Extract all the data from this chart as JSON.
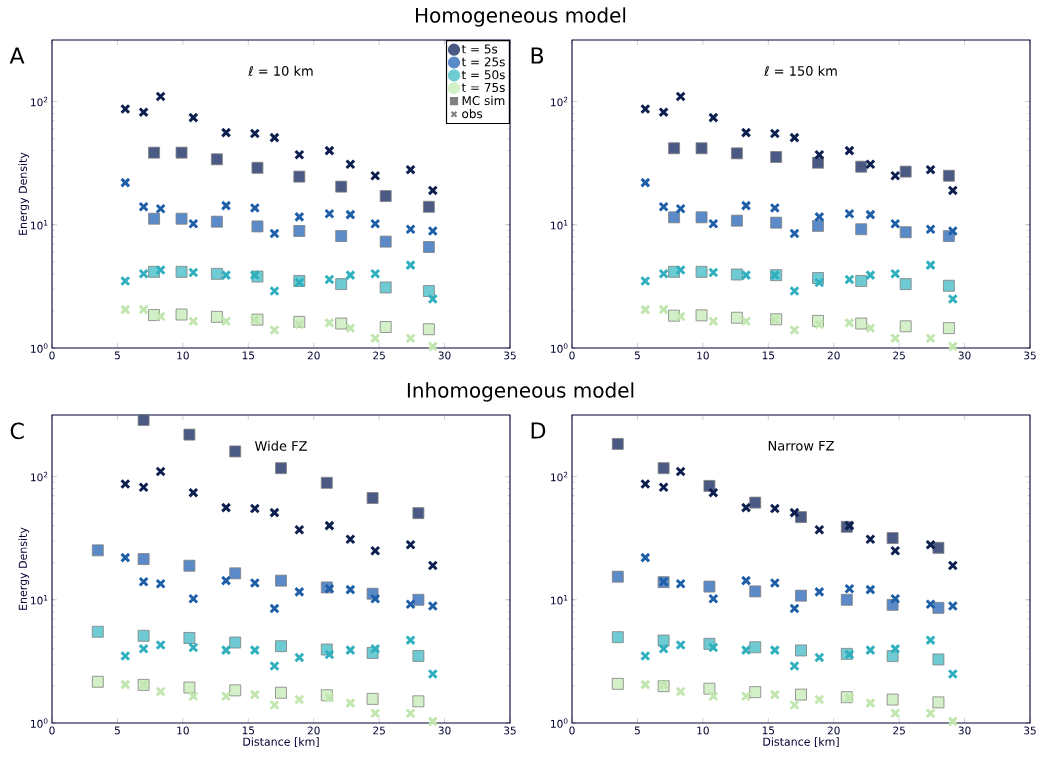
{
  "chart_data": [
    {
      "type": "scatter",
      "title": "Homogeneous model",
      "subtitle": "ℓ = 10 km",
      "annotations": [
        "A",
        "MC sim",
        "obs"
      ],
      "ylabel": "Energy Density",
      "xlim": [
        0,
        35
      ],
      "ylim": [
        1,
        316
      ],
      "xticks": [
        0,
        5,
        10,
        15,
        20,
        25,
        30,
        35
      ],
      "yticks": [
        {
          "value": 1,
          "label": "10$^{0}$"
        },
        {
          "value": 10,
          "label": "10$^{1}$"
        },
        {
          "value": 100,
          "label": "10$^{2}$"
        }
      ],
      "log": "y",
      "legend": "top right",
      "series": [
        {
          "name": "t = 5s",
          "color": "#4a5a85",
          "marker": "square",
          "x": [
            7.8,
            9.9,
            12.6,
            15.7,
            18.9,
            22.1,
            25.5,
            28.8
          ],
          "values": [
            38.5,
            38.5,
            34,
            29,
            24.6,
            20.4,
            17.1,
            14.0
          ]
        },
        {
          "name": "t = 25s",
          "color": "#5b8ac8",
          "marker": "square",
          "x": [
            7.8,
            9.9,
            12.6,
            15.7,
            18.9,
            22.1,
            25.5,
            28.8
          ],
          "values": [
            11.2,
            11.2,
            10.6,
            9.7,
            8.9,
            8.1,
            7.3,
            6.6
          ]
        },
        {
          "name": "t = 50s",
          "color": "#6ecbd3",
          "marker": "square",
          "x": [
            7.8,
            9.9,
            12.6,
            15.7,
            18.9,
            22.1,
            25.5,
            28.8
          ],
          "values": [
            4.15,
            4.15,
            4.0,
            3.8,
            3.5,
            3.3,
            3.1,
            2.9
          ]
        },
        {
          "name": "t = 75s",
          "color": "#d4f0c8",
          "marker": "square",
          "x": [
            7.8,
            9.9,
            12.6,
            15.7,
            18.9,
            22.1,
            25.5,
            28.8
          ],
          "values": [
            1.85,
            1.87,
            1.79,
            1.7,
            1.63,
            1.58,
            1.48,
            1.42
          ]
        },
        {
          "color": "#0d1f4f",
          "marker": "cross",
          "x": [
            5.6,
            7.0,
            8.3,
            10.8,
            13.3,
            15.5,
            17.0,
            18.9,
            21.2,
            22.8,
            24.7,
            27.4,
            29.1
          ],
          "values": [
            87,
            82,
            110,
            74,
            56,
            55,
            51,
            37,
            40,
            31,
            25,
            28,
            19
          ]
        },
        {
          "color": "#1f5fa8",
          "marker": "cross",
          "x": [
            5.6,
            7.0,
            8.3,
            10.8,
            13.3,
            15.5,
            17.0,
            18.9,
            21.2,
            22.8,
            24.7,
            27.4,
            29.1
          ],
          "values": [
            22,
            14,
            13.5,
            10.2,
            14.3,
            13.7,
            8.5,
            11.6,
            12.3,
            12.1,
            10.2,
            9.2,
            8.9
          ]
        },
        {
          "color": "#30b0bf",
          "marker": "cross",
          "x": [
            5.6,
            7.0,
            8.3,
            10.8,
            13.3,
            15.5,
            17.0,
            18.9,
            21.2,
            22.8,
            24.7,
            27.4,
            29.1
          ],
          "values": [
            3.5,
            4.0,
            4.3,
            4.1,
            3.9,
            3.9,
            2.9,
            3.4,
            3.6,
            3.9,
            4.0,
            4.7,
            2.5
          ]
        },
        {
          "color": "#c2e6b0",
          "marker": "cross",
          "x": [
            5.6,
            7.0,
            8.3,
            10.8,
            13.3,
            15.5,
            17.0,
            18.9,
            21.2,
            22.8,
            24.7,
            27.4,
            29.1
          ],
          "values": [
            2.05,
            2.05,
            1.8,
            1.65,
            1.65,
            1.7,
            1.4,
            1.55,
            1.6,
            1.45,
            1.2,
            1.2,
            1.03
          ]
        }
      ]
    },
    {
      "type": "scatter",
      "subtitle": "ℓ = 150 km",
      "annotations": [
        "B"
      ],
      "xlim": [
        0,
        35
      ],
      "ylim": [
        1,
        316
      ],
      "xticks": [
        0,
        5,
        10,
        15,
        20,
        25,
        30,
        35
      ],
      "yticks": [
        {
          "value": 1,
          "label": "10$^{0}$"
        },
        {
          "value": 10,
          "label": "10$^{1}$"
        },
        {
          "value": 100,
          "label": "10$^{2}$"
        }
      ],
      "log": "y",
      "series": [
        {
          "color": "#4a5a85",
          "marker": "square",
          "x": [
            7.8,
            9.9,
            12.6,
            15.6,
            18.8,
            22.1,
            25.5,
            28.8
          ],
          "values": [
            41.8,
            41.8,
            38,
            35.5,
            31.9,
            29.6,
            27,
            25
          ]
        },
        {
          "color": "#5b8ac8",
          "marker": "square",
          "x": [
            7.8,
            9.9,
            12.6,
            15.6,
            18.8,
            22.1,
            25.5,
            28.8
          ],
          "values": [
            11.5,
            11.5,
            10.8,
            10.4,
            9.8,
            9.2,
            8.7,
            8.1
          ]
        },
        {
          "color": "#6ecbd3",
          "marker": "square",
          "x": [
            7.8,
            9.9,
            12.6,
            15.6,
            18.8,
            22.1,
            25.5,
            28.8
          ],
          "values": [
            4.15,
            4.15,
            3.95,
            3.9,
            3.7,
            3.5,
            3.3,
            3.2
          ]
        },
        {
          "color": "#d4f0c8",
          "marker": "square",
          "x": [
            7.8,
            9.9,
            12.6,
            15.6,
            18.8,
            22.1,
            25.5,
            28.8
          ],
          "values": [
            1.83,
            1.84,
            1.76,
            1.71,
            1.66,
            1.58,
            1.5,
            1.45
          ]
        },
        {
          "color": "#0d1f4f",
          "marker": "cross",
          "x": [
            5.6,
            7.0,
            8.3,
            10.8,
            13.3,
            15.5,
            17.0,
            18.9,
            21.2,
            22.8,
            24.7,
            27.4,
            29.1
          ],
          "values": [
            87,
            82,
            110,
            74,
            56,
            55,
            51,
            37,
            40,
            31,
            25,
            28,
            19
          ]
        },
        {
          "color": "#1f5fa8",
          "marker": "cross",
          "x": [
            5.6,
            7.0,
            8.3,
            10.8,
            13.3,
            15.5,
            17.0,
            18.9,
            21.2,
            22.8,
            24.7,
            27.4,
            29.1
          ],
          "values": [
            22,
            14,
            13.5,
            10.2,
            14.3,
            13.7,
            8.5,
            11.6,
            12.3,
            12.1,
            10.2,
            9.2,
            8.9
          ]
        },
        {
          "color": "#30b0bf",
          "marker": "cross",
          "x": [
            5.6,
            7.0,
            8.3,
            10.8,
            13.3,
            15.5,
            17.0,
            18.9,
            21.2,
            22.8,
            24.7,
            27.4,
            29.1
          ],
          "values": [
            3.5,
            4.0,
            4.3,
            4.1,
            3.9,
            3.9,
            2.9,
            3.4,
            3.6,
            3.9,
            4.0,
            4.7,
            2.5
          ]
        },
        {
          "color": "#c2e6b0",
          "marker": "cross",
          "x": [
            5.6,
            7.0,
            8.3,
            10.8,
            13.3,
            15.5,
            17.0,
            18.9,
            21.2,
            22.8,
            24.7,
            27.4,
            29.1
          ],
          "values": [
            2.05,
            2.05,
            1.8,
            1.65,
            1.65,
            1.7,
            1.4,
            1.55,
            1.6,
            1.45,
            1.2,
            1.2,
            1.03
          ]
        }
      ]
    },
    {
      "type": "scatter",
      "title": "Inhomogeneous model",
      "subtitle": "Wide FZ",
      "annotations": [
        "C"
      ],
      "xlabel": "Distance [km]",
      "ylabel": "Energy Density",
      "xlim": [
        0,
        35
      ],
      "ylim": [
        1,
        316
      ],
      "xticks": [
        0,
        5,
        10,
        15,
        20,
        25,
        30,
        35
      ],
      "yticks": [
        {
          "value": 1,
          "label": "10$^{0}$"
        },
        {
          "value": 10,
          "label": "10$^{1}$"
        },
        {
          "value": 100,
          "label": "10$^{2}$"
        }
      ],
      "log": "y",
      "series": [
        {
          "color": "#4a5a85",
          "marker": "square",
          "x": [
            7,
            10.5,
            14,
            17.5,
            21,
            24.5,
            28
          ],
          "values": [
            288,
            219,
            160,
            117,
            89,
            67,
            50.5
          ]
        },
        {
          "color": "#5b8ac8",
          "marker": "square",
          "x": [
            3.5,
            7,
            10.5,
            14,
            17.5,
            21,
            24.5,
            28
          ],
          "values": [
            25.2,
            21.4,
            18.9,
            16.4,
            14.3,
            12.6,
            11.2,
            10.0
          ]
        },
        {
          "color": "#6ecbd3",
          "marker": "square",
          "x": [
            3.5,
            7,
            10.5,
            14,
            17.5,
            21,
            24.5,
            28
          ],
          "values": [
            5.5,
            5.1,
            4.9,
            4.5,
            4.2,
            3.95,
            3.7,
            3.5
          ]
        },
        {
          "color": "#d4f0c8",
          "marker": "square",
          "x": [
            3.5,
            7,
            10.5,
            14,
            17.5,
            21,
            24.5,
            28
          ],
          "values": [
            2.16,
            2.04,
            1.94,
            1.84,
            1.76,
            1.68,
            1.57,
            1.5
          ]
        },
        {
          "color": "#0d1f4f",
          "marker": "cross",
          "x": [
            5.6,
            7.0,
            8.3,
            10.8,
            13.3,
            15.5,
            17.0,
            18.9,
            21.2,
            22.8,
            24.7,
            27.4,
            29.1
          ],
          "values": [
            87,
            82,
            110,
            74,
            56,
            55,
            51,
            37,
            40,
            31,
            25,
            28,
            19
          ]
        },
        {
          "color": "#1f5fa8",
          "marker": "cross",
          "x": [
            5.6,
            7.0,
            8.3,
            10.8,
            13.3,
            15.5,
            17.0,
            18.9,
            21.2,
            22.8,
            24.7,
            27.4,
            29.1
          ],
          "values": [
            22,
            14,
            13.5,
            10.2,
            14.3,
            13.7,
            8.5,
            11.6,
            12.3,
            12.1,
            10.2,
            9.2,
            8.9
          ]
        },
        {
          "color": "#30b0bf",
          "marker": "cross",
          "x": [
            5.6,
            7.0,
            8.3,
            10.8,
            13.3,
            15.5,
            17.0,
            18.9,
            21.2,
            22.8,
            24.7,
            27.4,
            29.1
          ],
          "values": [
            3.5,
            4.0,
            4.3,
            4.1,
            3.9,
            3.9,
            2.9,
            3.4,
            3.6,
            3.9,
            4.0,
            4.7,
            2.5
          ]
        },
        {
          "color": "#c2e6b0",
          "marker": "cross",
          "x": [
            5.6,
            7.0,
            8.3,
            10.8,
            13.3,
            15.5,
            17.0,
            18.9,
            21.2,
            22.8,
            24.7,
            27.4,
            29.1
          ],
          "values": [
            2.05,
            2.05,
            1.8,
            1.65,
            1.65,
            1.7,
            1.4,
            1.55,
            1.6,
            1.45,
            1.2,
            1.2,
            1.03
          ]
        }
      ]
    },
    {
      "type": "scatter",
      "subtitle": "Narrow FZ",
      "annotations": [
        "D"
      ],
      "xlabel": "Distance [km]",
      "xlim": [
        0,
        35
      ],
      "ylim": [
        1,
        316
      ],
      "xticks": [
        0,
        5,
        10,
        15,
        20,
        25,
        30,
        35
      ],
      "yticks": [
        {
          "value": 1,
          "label": "10$^{0}$"
        },
        {
          "value": 10,
          "label": "10$^{1}$"
        },
        {
          "value": 100,
          "label": "10$^{2}$"
        }
      ],
      "log": "y",
      "series": [
        {
          "color": "#4a5a85",
          "marker": "square",
          "x": [
            3.5,
            7,
            10.5,
            14,
            17.5,
            21,
            24.5,
            28
          ],
          "values": [
            184,
            117,
            84,
            61.5,
            46.9,
            39.1,
            31.7,
            26.4
          ]
        },
        {
          "color": "#5b8ac8",
          "marker": "square",
          "x": [
            3.5,
            7,
            10.5,
            14,
            17.5,
            21,
            24.5,
            28
          ],
          "values": [
            15.4,
            13.9,
            12.8,
            11.7,
            10.8,
            10.0,
            9.1,
            8.6
          ]
        },
        {
          "color": "#6ecbd3",
          "marker": "square",
          "x": [
            3.5,
            7,
            10.5,
            14,
            17.5,
            21,
            24.5,
            28
          ],
          "values": [
            4.97,
            4.67,
            4.39,
            4.12,
            3.88,
            3.64,
            3.49,
            3.28
          ]
        },
        {
          "color": "#d4f0c8",
          "marker": "square",
          "x": [
            3.5,
            7,
            10.5,
            14,
            17.5,
            21,
            24.5,
            28
          ],
          "values": [
            2.08,
            1.99,
            1.9,
            1.78,
            1.7,
            1.62,
            1.55,
            1.47
          ]
        },
        {
          "color": "#0d1f4f",
          "marker": "cross",
          "x": [
            5.6,
            7.0,
            8.3,
            10.8,
            13.3,
            15.5,
            17.0,
            18.9,
            21.2,
            22.8,
            24.7,
            27.4,
            29.1
          ],
          "values": [
            87,
            82,
            110,
            74,
            56,
            55,
            51,
            37,
            40,
            31,
            25,
            28,
            19
          ]
        },
        {
          "color": "#1f5fa8",
          "marker": "cross",
          "x": [
            5.6,
            7.0,
            8.3,
            10.8,
            13.3,
            15.5,
            17.0,
            18.9,
            21.2,
            22.8,
            24.7,
            27.4,
            29.1
          ],
          "values": [
            22,
            14,
            13.5,
            10.2,
            14.3,
            13.7,
            8.5,
            11.6,
            12.3,
            12.1,
            10.2,
            9.2,
            8.9
          ]
        },
        {
          "color": "#30b0bf",
          "marker": "cross",
          "x": [
            5.6,
            7.0,
            8.3,
            10.8,
            13.3,
            15.5,
            17.0,
            18.9,
            21.2,
            22.8,
            24.7,
            27.4,
            29.1
          ],
          "values": [
            3.5,
            4.0,
            4.3,
            4.1,
            3.9,
            3.9,
            2.9,
            3.4,
            3.6,
            3.9,
            4.0,
            4.7,
            2.5
          ]
        },
        {
          "color": "#c2e6b0",
          "marker": "cross",
          "x": [
            5.6,
            7.0,
            8.3,
            10.8,
            13.3,
            15.5,
            17.0,
            18.9,
            21.2,
            22.8,
            24.7,
            27.4,
            29.1
          ],
          "values": [
            2.05,
            2.05,
            1.8,
            1.65,
            1.65,
            1.7,
            1.4,
            1.55,
            1.6,
            1.45,
            1.2,
            1.2,
            1.03
          ]
        }
      ]
    }
  ]
}
